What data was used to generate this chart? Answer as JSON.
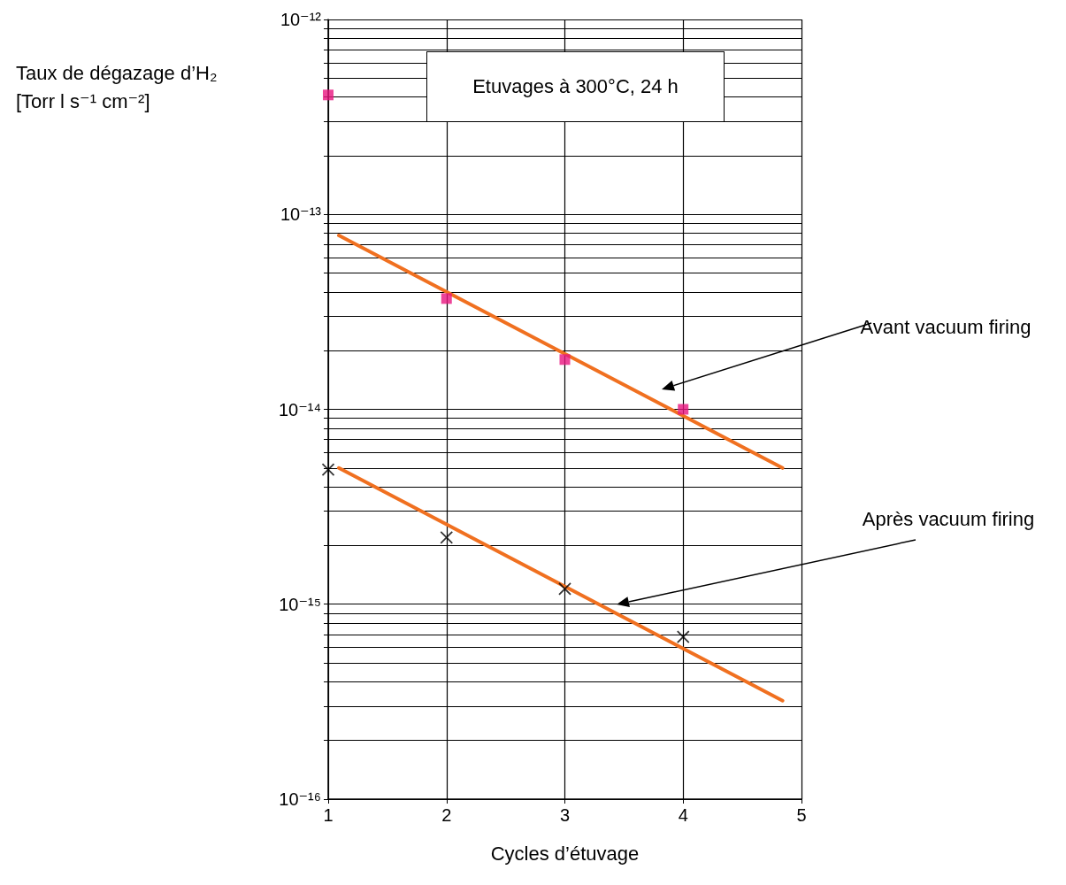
{
  "chart_data": {
    "type": "scatter",
    "xlabel": "Cycles d’étuvage",
    "ylabel": "Taux de dégazage d’H₂\n[Torr l s⁻¹ cm⁻²]",
    "log": "y",
    "grid": true,
    "xlim": [
      1,
      5
    ],
    "xticks": [
      1,
      2,
      3,
      4,
      5
    ],
    "ylim": [
      1e-16,
      1e-12
    ],
    "yticks": [
      {
        "value": 1e-16,
        "label": "10⁻¹⁶"
      },
      {
        "value": 2e-16,
        "label": null
      },
      {
        "value": 3e-16,
        "label": null
      },
      {
        "value": 4e-16,
        "label": null
      },
      {
        "value": 5e-16,
        "label": null
      },
      {
        "value": 6e-16,
        "label": null
      },
      {
        "value": 7e-16,
        "label": null
      },
      {
        "value": 8e-16,
        "label": null
      },
      {
        "value": 9e-16,
        "label": null
      },
      {
        "value": 1e-15,
        "label": "10⁻¹⁵"
      },
      {
        "value": 2e-15,
        "label": null
      },
      {
        "value": 3e-15,
        "label": null
      },
      {
        "value": 4e-15,
        "label": null
      },
      {
        "value": 5e-15,
        "label": null
      },
      {
        "value": 6e-15,
        "label": null
      },
      {
        "value": 7e-15,
        "label": null
      },
      {
        "value": 8e-15,
        "label": null
      },
      {
        "value": 9e-15,
        "label": null
      },
      {
        "value": 1e-14,
        "label": "10⁻¹⁴"
      },
      {
        "value": 2e-14,
        "label": null
      },
      {
        "value": 3e-14,
        "label": null
      },
      {
        "value": 4e-14,
        "label": null
      },
      {
        "value": 5e-14,
        "label": null
      },
      {
        "value": 6e-14,
        "label": null
      },
      {
        "value": 7e-14,
        "label": null
      },
      {
        "value": 8e-14,
        "label": null
      },
      {
        "value": 9e-14,
        "label": null
      },
      {
        "value": 1e-13,
        "label": "10⁻¹³"
      },
      {
        "value": 2e-13,
        "label": null
      },
      {
        "value": 3e-13,
        "label": null
      },
      {
        "value": 4e-13,
        "label": null
      },
      {
        "value": 5e-13,
        "label": null
      },
      {
        "value": 6e-13,
        "label": null
      },
      {
        "value": 7e-13,
        "label": null
      },
      {
        "value": 8e-13,
        "label": null
      },
      {
        "value": 9e-13,
        "label": null
      },
      {
        "value": 1e-12,
        "label": "10⁻¹²"
      }
    ],
    "series": [
      {
        "color": "#e8157f",
        "marker": "square",
        "x": [
          1,
          2,
          3,
          4
        ],
        "values": [
          4.1e-13,
          3.7e-14,
          1.8e-14,
          1e-14
        ]
      },
      {
        "color": "#000000",
        "marker": "cross",
        "x": [
          1,
          2,
          3,
          4
        ],
        "values": [
          4.9e-15,
          2.2e-15,
          1.2e-15,
          6.8e-16
        ]
      },
      {
        "type": "line",
        "color": "#f07020",
        "marker": "none",
        "x": [
          1.09,
          4.84
        ],
        "values": [
          7.8e-14,
          5e-15
        ]
      },
      {
        "type": "line",
        "color": "#f07020",
        "marker": "none",
        "x": [
          1.09,
          4.84
        ],
        "values": [
          5e-15,
          3.2e-16
        ]
      }
    ],
    "annotations": [
      "Etuvages à 300°C, 24 h",
      "Avant vacuum firing",
      "Après vacuum firing"
    ]
  }
}
